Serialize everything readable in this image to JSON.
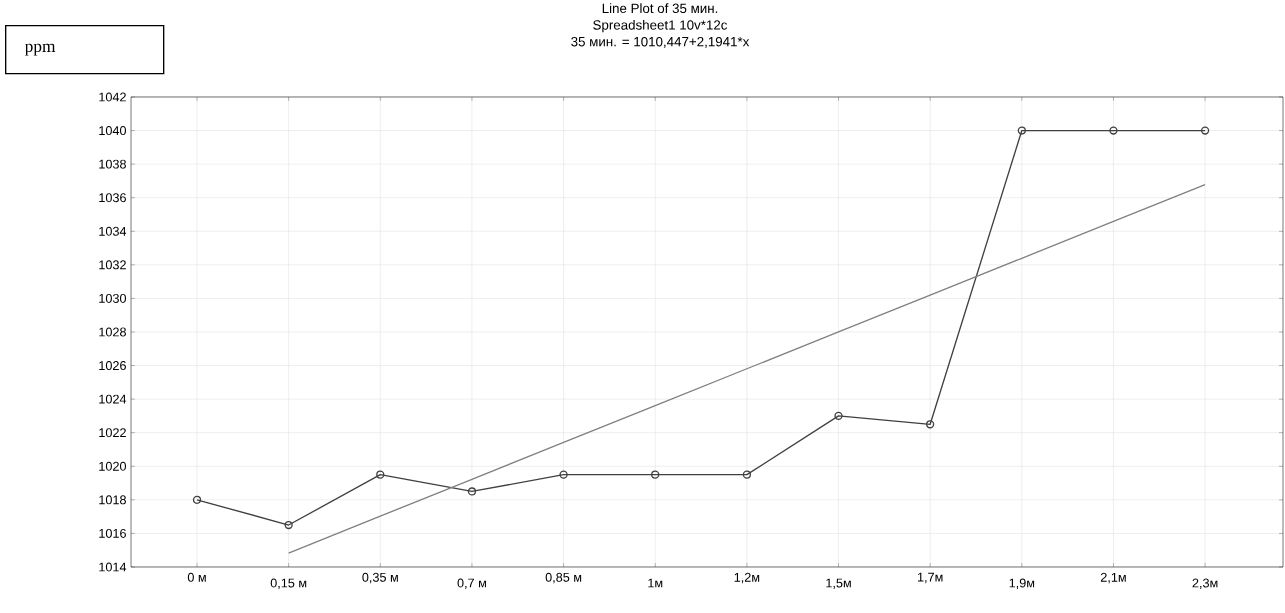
{
  "chart_data": {
    "type": "line",
    "title": "Line Plot of 35 мин.",
    "subtitle": "Spreadsheet1 10v*12c\n35 мин. = 1010,447+2,1941*x",
    "ylabel": "ppm",
    "categories": [
      "0 м",
      "0,15 м",
      "0,35 м",
      "0,7 м",
      "0,85 м",
      "1м",
      "1,2м",
      "1,5м",
      "1,7м",
      "1,9м",
      "2,1м",
      "2,3м"
    ],
    "series": [
      {
        "color": "#404040",
        "values": [
          1018,
          1016.5,
          1019.5,
          1018.5,
          1019.5,
          1019.5,
          1019.5,
          1023,
          1022.5,
          1040,
          1040,
          1040
        ],
        "marker": "circle"
      },
      {
        "type": "line",
        "color": "#808080",
        "values": [
          null,
          1014.83,
          1017.03,
          1019.22,
          1021.42,
          1023.61,
          1025.81,
          1028.0,
          1030.2,
          1032.39,
          1034.59,
          1036.78
        ],
        "marker": "none"
      }
    ],
    "ylim": [
      1014,
      1042
    ],
    "yticks": [
      1014,
      1016,
      1018,
      1020,
      1022,
      1024,
      1026,
      1028,
      1030,
      1032,
      1034,
      1036,
      1038,
      1040,
      1042
    ],
    "grid": true
  }
}
